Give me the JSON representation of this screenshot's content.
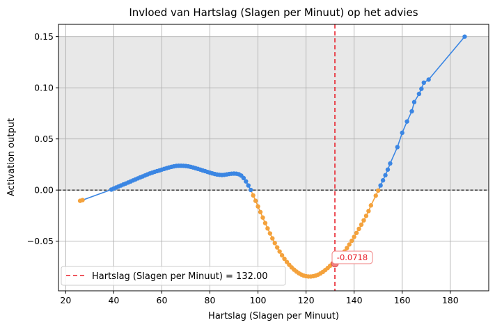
{
  "chart_data": {
    "type": "line",
    "title": "Invloed van Hartslag (Slagen per Minuut) op het advies",
    "xlabel": "Hartslag (Slagen per Minuut)",
    "ylabel": "Activation output",
    "xlim": [
      17,
      196
    ],
    "ylim": [
      -0.0985,
      0.162
    ],
    "xticks": [
      20,
      40,
      60,
      80,
      100,
      120,
      140,
      160,
      180
    ],
    "yticks": [
      -0.05,
      0.0,
      0.05,
      0.1,
      0.15
    ],
    "xtick_labels": [
      "20",
      "40",
      "60",
      "80",
      "100",
      "120",
      "140",
      "160",
      "180"
    ],
    "ytick_labels": [
      "−0.05",
      "0.00",
      "0.05",
      "0.10",
      "0.15"
    ],
    "grid": true,
    "shaded_region": {
      "y_from": 0.0,
      "y_to": 0.15,
      "color": "#e8e8e8"
    },
    "zero_line": {
      "y": 0.0,
      "color": "#000000",
      "style": "dashed"
    },
    "vline": {
      "x": 132.0,
      "color": "#e8202a",
      "style": "dashed",
      "label": "Hartslag (Slagen per Minuut) = 132.00"
    },
    "marker": {
      "x": 132.0,
      "y": -0.0718,
      "label": "-0.0718"
    },
    "legend": {
      "placement": "lower-left",
      "entries": [
        "Hartslag (Slagen per Minuut) = 132.00"
      ]
    },
    "colors": {
      "positive": "#3b86e3",
      "negative": "#f4a23c",
      "marker": "#f08080"
    },
    "series": [
      {
        "x": [
          26,
          27,
          39,
          40,
          41,
          42,
          43,
          44,
          45,
          46,
          47,
          48,
          49,
          50,
          51,
          52,
          53,
          54,
          55,
          56,
          57,
          58,
          59,
          60,
          61,
          62,
          63,
          64,
          65,
          66,
          67,
          68,
          69,
          70,
          71,
          72,
          73,
          74,
          75,
          76,
          77,
          78,
          79,
          80,
          81,
          82,
          83,
          84,
          85,
          86,
          87,
          88,
          89,
          90,
          91,
          92,
          93,
          94,
          95,
          96,
          97,
          98,
          99,
          100,
          101,
          102,
          103,
          104,
          105,
          106,
          107,
          108,
          109,
          110,
          111,
          112,
          113,
          114,
          115,
          116,
          117,
          118,
          119,
          120,
          121,
          122,
          123,
          124,
          125,
          126,
          127,
          128,
          129,
          130,
          131,
          132,
          133,
          134,
          135,
          136,
          137,
          138,
          139,
          140,
          141,
          142,
          143,
          144,
          145,
          146,
          147,
          149,
          150,
          151,
          152,
          153,
          154,
          155,
          158,
          160,
          162,
          164,
          165,
          167,
          168,
          169,
          171,
          186
        ],
        "y": [
          -0.0105,
          -0.0098,
          0.0005,
          0.0015,
          0.0025,
          0.0035,
          0.0045,
          0.0055,
          0.0064,
          0.0074,
          0.0084,
          0.0094,
          0.0104,
          0.0114,
          0.0124,
          0.0133,
          0.0143,
          0.0153,
          0.0162,
          0.017,
          0.0178,
          0.0185,
          0.0192,
          0.02,
          0.0207,
          0.0214,
          0.0221,
          0.0227,
          0.0232,
          0.0236,
          0.0238,
          0.0238,
          0.0237,
          0.0235,
          0.0232,
          0.0227,
          0.0221,
          0.0214,
          0.0207,
          0.02,
          0.0192,
          0.0185,
          0.0177,
          0.017,
          0.0163,
          0.0157,
          0.0152,
          0.0149,
          0.0147,
          0.0149,
          0.0153,
          0.0157,
          0.016,
          0.0161,
          0.016,
          0.0155,
          0.0142,
          0.0118,
          0.0085,
          0.0045,
          0.0001,
          -0.0052,
          -0.0105,
          -0.016,
          -0.0215,
          -0.0269,
          -0.0323,
          -0.0375,
          -0.0424,
          -0.0472,
          -0.0518,
          -0.0561,
          -0.0601,
          -0.0638,
          -0.0672,
          -0.0703,
          -0.0731,
          -0.0756,
          -0.0778,
          -0.0797,
          -0.0813,
          -0.0826,
          -0.0836,
          -0.0842,
          -0.0845,
          -0.0845,
          -0.0842,
          -0.0836,
          -0.0827,
          -0.0815,
          -0.08,
          -0.0782,
          -0.0762,
          -0.074,
          -0.0718,
          -0.0718,
          -0.069,
          -0.0662,
          -0.0632,
          -0.06,
          -0.0567,
          -0.0532,
          -0.0496,
          -0.0458,
          -0.0419,
          -0.0379,
          -0.0338,
          -0.0296,
          -0.0252,
          -0.0205,
          -0.015,
          -0.0055,
          -0.0005,
          0.0045,
          0.0095,
          0.0145,
          0.02,
          0.026,
          0.042,
          0.056,
          0.067,
          0.077,
          0.086,
          0.094,
          0.099,
          0.105,
          0.108,
          0.15
        ]
      }
    ]
  }
}
